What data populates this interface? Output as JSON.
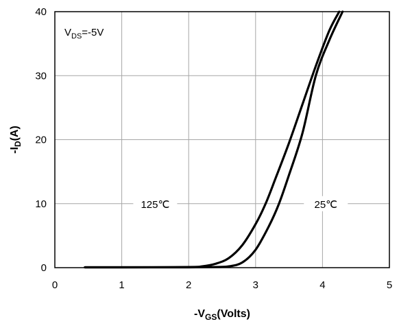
{
  "chart_data": {
    "type": "line",
    "title": "",
    "xlabel": {
      "main": "-V",
      "sub": "GS",
      "rest": "(Volts)"
    },
    "ylabel": {
      "main": "-I",
      "sub": "D",
      "rest": "(A)"
    },
    "xlim": [
      0,
      5
    ],
    "ylim": [
      0,
      40
    ],
    "xticks": [
      0,
      1,
      2,
      3,
      4,
      5
    ],
    "yticks": [
      0,
      10,
      20,
      30,
      40
    ],
    "grid": true,
    "condition": {
      "main": "V",
      "sub": "DS",
      "rest": "=-5V"
    },
    "series": [
      {
        "name": "125℃",
        "x": [
          0.45,
          1.0,
          2.0,
          2.2,
          2.4,
          2.6,
          2.8,
          3.0,
          3.15,
          3.3,
          3.5,
          3.7,
          3.9,
          4.1,
          4.25
        ],
        "y": [
          0.05,
          0.05,
          0.1,
          0.2,
          0.6,
          1.5,
          3.5,
          6.8,
          10.0,
          14.0,
          19.5,
          25.5,
          31.5,
          37.0,
          40.0
        ]
      },
      {
        "name": "25℃",
        "x": [
          0.45,
          1.0,
          2.0,
          2.4,
          2.6,
          2.8,
          3.0,
          3.2,
          3.35,
          3.5,
          3.7,
          3.9,
          4.1,
          4.3
        ],
        "y": [
          0.05,
          0.05,
          0.05,
          0.1,
          0.2,
          0.8,
          2.8,
          6.5,
          10.0,
          14.5,
          21.0,
          30.0,
          35.5,
          40.0
        ]
      }
    ],
    "annotations": [
      {
        "text": "125℃",
        "x": 1.5,
        "y": 10
      },
      {
        "text": "25℃",
        "x": 4.05,
        "y": 10
      }
    ]
  }
}
